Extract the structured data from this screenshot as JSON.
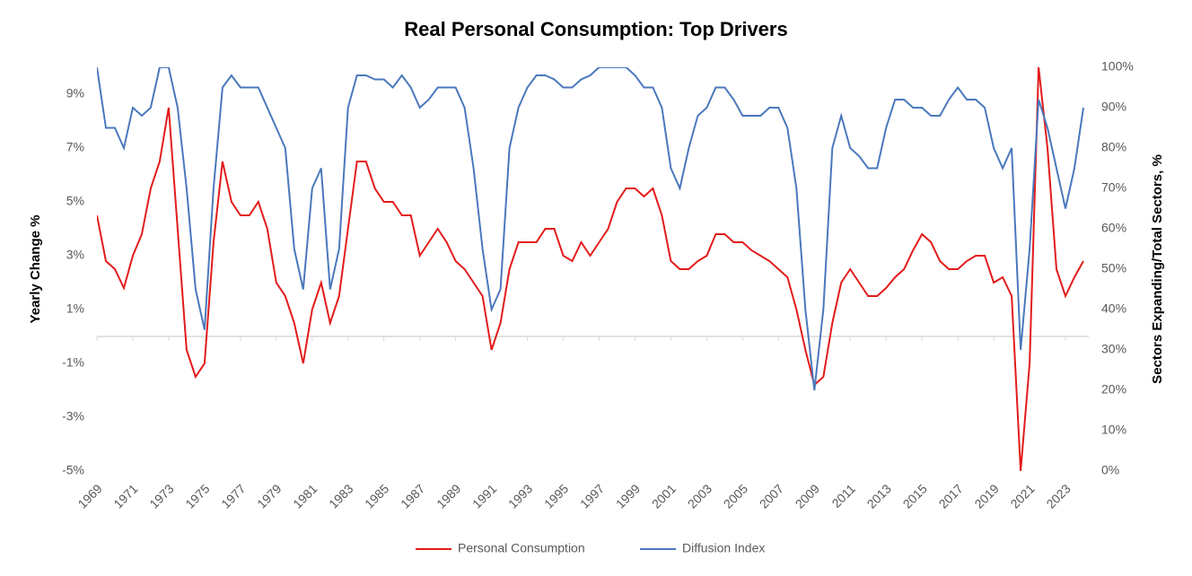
{
  "chart_data": {
    "type": "line",
    "title": "Real Personal Consumption: Top Drivers",
    "y_label": "Yearly Change %",
    "y2_label": "Sectors Expanding/Total Sectors, %",
    "x": [
      1969,
      1969.5,
      1970,
      1970.5,
      1971,
      1971.5,
      1972,
      1972.5,
      1973,
      1973.5,
      1974,
      1974.5,
      1975,
      1975.5,
      1976,
      1976.5,
      1977,
      1977.5,
      1978,
      1978.5,
      1979,
      1979.5,
      1980,
      1980.5,
      1981,
      1981.5,
      1982,
      1982.5,
      1983,
      1983.5,
      1984,
      1984.5,
      1985,
      1985.5,
      1986,
      1986.5,
      1987,
      1987.5,
      1988,
      1988.5,
      1989,
      1989.5,
      1990,
      1990.5,
      1991,
      1991.5,
      1992,
      1992.5,
      1993,
      1993.5,
      1994,
      1994.5,
      1995,
      1995.5,
      1996,
      1996.5,
      1997,
      1997.5,
      1998,
      1998.5,
      1999,
      1999.5,
      2000,
      2000.5,
      2001,
      2001.5,
      2002,
      2002.5,
      2003,
      2003.5,
      2004,
      2004.5,
      2005,
      2005.5,
      2006,
      2006.5,
      2007,
      2007.5,
      2008,
      2008.5,
      2009,
      2009.5,
      2010,
      2010.5,
      2011,
      2011.5,
      2012,
      2012.5,
      2013,
      2013.5,
      2014,
      2014.5,
      2015,
      2015.5,
      2016,
      2016.5,
      2017,
      2017.5,
      2018,
      2018.5,
      2019,
      2019.5,
      2020,
      2020.5,
      2021,
      2021.5,
      2022,
      2022.5,
      2023,
      2023.5,
      2024
    ],
    "series": [
      {
        "name": "Personal Consumption",
        "color": "#e31b1b",
        "axis": "y",
        "values": [
          4.5,
          2.8,
          2.5,
          1.8,
          3.0,
          3.8,
          5.5,
          6.5,
          8.5,
          4.0,
          -0.5,
          -1.5,
          -1.0,
          3.5,
          6.5,
          5.0,
          4.5,
          4.5,
          5.0,
          4.0,
          2.0,
          1.5,
          0.5,
          -1.0,
          1.0,
          2.0,
          0.5,
          1.5,
          4.0,
          6.5,
          6.5,
          5.5,
          5.0,
          5.0,
          4.5,
          4.5,
          3.0,
          3.5,
          4.0,
          3.5,
          2.8,
          2.5,
          2.0,
          1.5,
          -0.5,
          0.5,
          2.5,
          3.5,
          3.5,
          3.5,
          4.0,
          4.0,
          3.0,
          2.8,
          3.5,
          3.0,
          3.5,
          4.0,
          5.0,
          5.5,
          5.5,
          5.2,
          5.5,
          4.5,
          2.8,
          2.5,
          2.5,
          2.8,
          3.0,
          3.8,
          3.8,
          3.5,
          3.5,
          3.2,
          3.0,
          2.8,
          2.5,
          2.2,
          1.0,
          -0.5,
          -1.8,
          -1.5,
          0.5,
          2.0,
          2.5,
          2.0,
          1.5,
          1.5,
          1.8,
          2.2,
          2.5,
          3.2,
          3.8,
          3.5,
          2.8,
          2.5,
          2.5,
          2.8,
          3.0,
          3.0,
          2.0,
          2.2,
          1.5,
          -5.0,
          -1.0,
          10.0,
          7.0,
          2.5,
          1.5,
          2.2,
          2.8
        ]
      },
      {
        "name": "Diffusion Index",
        "color": "#4a78bd",
        "axis": "y2",
        "values": [
          100,
          85,
          85,
          80,
          90,
          88,
          90,
          100,
          100,
          90,
          70,
          45,
          35,
          70,
          95,
          98,
          95,
          95,
          95,
          90,
          85,
          80,
          55,
          45,
          70,
          75,
          45,
          55,
          90,
          98,
          98,
          97,
          97,
          95,
          98,
          95,
          90,
          92,
          95,
          95,
          95,
          90,
          75,
          55,
          40,
          45,
          80,
          90,
          95,
          98,
          98,
          97,
          95,
          95,
          97,
          98,
          100,
          100,
          100,
          100,
          98,
          95,
          95,
          90,
          75,
          70,
          80,
          88,
          90,
          95,
          95,
          92,
          88,
          88,
          88,
          90,
          90,
          85,
          70,
          40,
          20,
          40,
          80,
          88,
          80,
          78,
          75,
          75,
          85,
          92,
          92,
          90,
          90,
          88,
          88,
          92,
          95,
          92,
          92,
          90,
          80,
          75,
          80,
          30,
          55,
          92,
          85,
          75,
          65,
          75,
          90
        ]
      }
    ],
    "xlim": [
      1969,
      2024.3
    ],
    "xticks": [
      1969,
      1971,
      1973,
      1975,
      1977,
      1979,
      1981,
      1983,
      1985,
      1987,
      1989,
      1991,
      1993,
      1995,
      1997,
      1999,
      2001,
      2003,
      2005,
      2007,
      2009,
      2011,
      2013,
      2015,
      2017,
      2019,
      2021,
      2023
    ],
    "ylim": [
      -5,
      10
    ],
    "yticks": [
      {
        "value": -5,
        "label": "-5%"
      },
      {
        "value": -3,
        "label": "-3%"
      },
      {
        "value": -1,
        "label": "-1%"
      },
      {
        "value": 1,
        "label": "1%"
      },
      {
        "value": 3,
        "label": "3%"
      },
      {
        "value": 5,
        "label": "5%"
      },
      {
        "value": 7,
        "label": "7%"
      },
      {
        "value": 9,
        "label": "9%"
      }
    ],
    "y2lim": [
      0,
      100
    ],
    "y2ticks": [
      {
        "value": 0,
        "label": "0%"
      },
      {
        "value": 10,
        "label": "10%"
      },
      {
        "value": 20,
        "label": "20%"
      },
      {
        "value": 30,
        "label": "30%"
      },
      {
        "value": 40,
        "label": "40%"
      },
      {
        "value": 50,
        "label": "50%"
      },
      {
        "value": 60,
        "label": "60%"
      },
      {
        "value": 70,
        "label": "70%"
      },
      {
        "value": 80,
        "label": "80%"
      },
      {
        "value": 90,
        "label": "90%"
      },
      {
        "value": 100,
        "label": "100%"
      }
    ],
    "grid": false
  }
}
